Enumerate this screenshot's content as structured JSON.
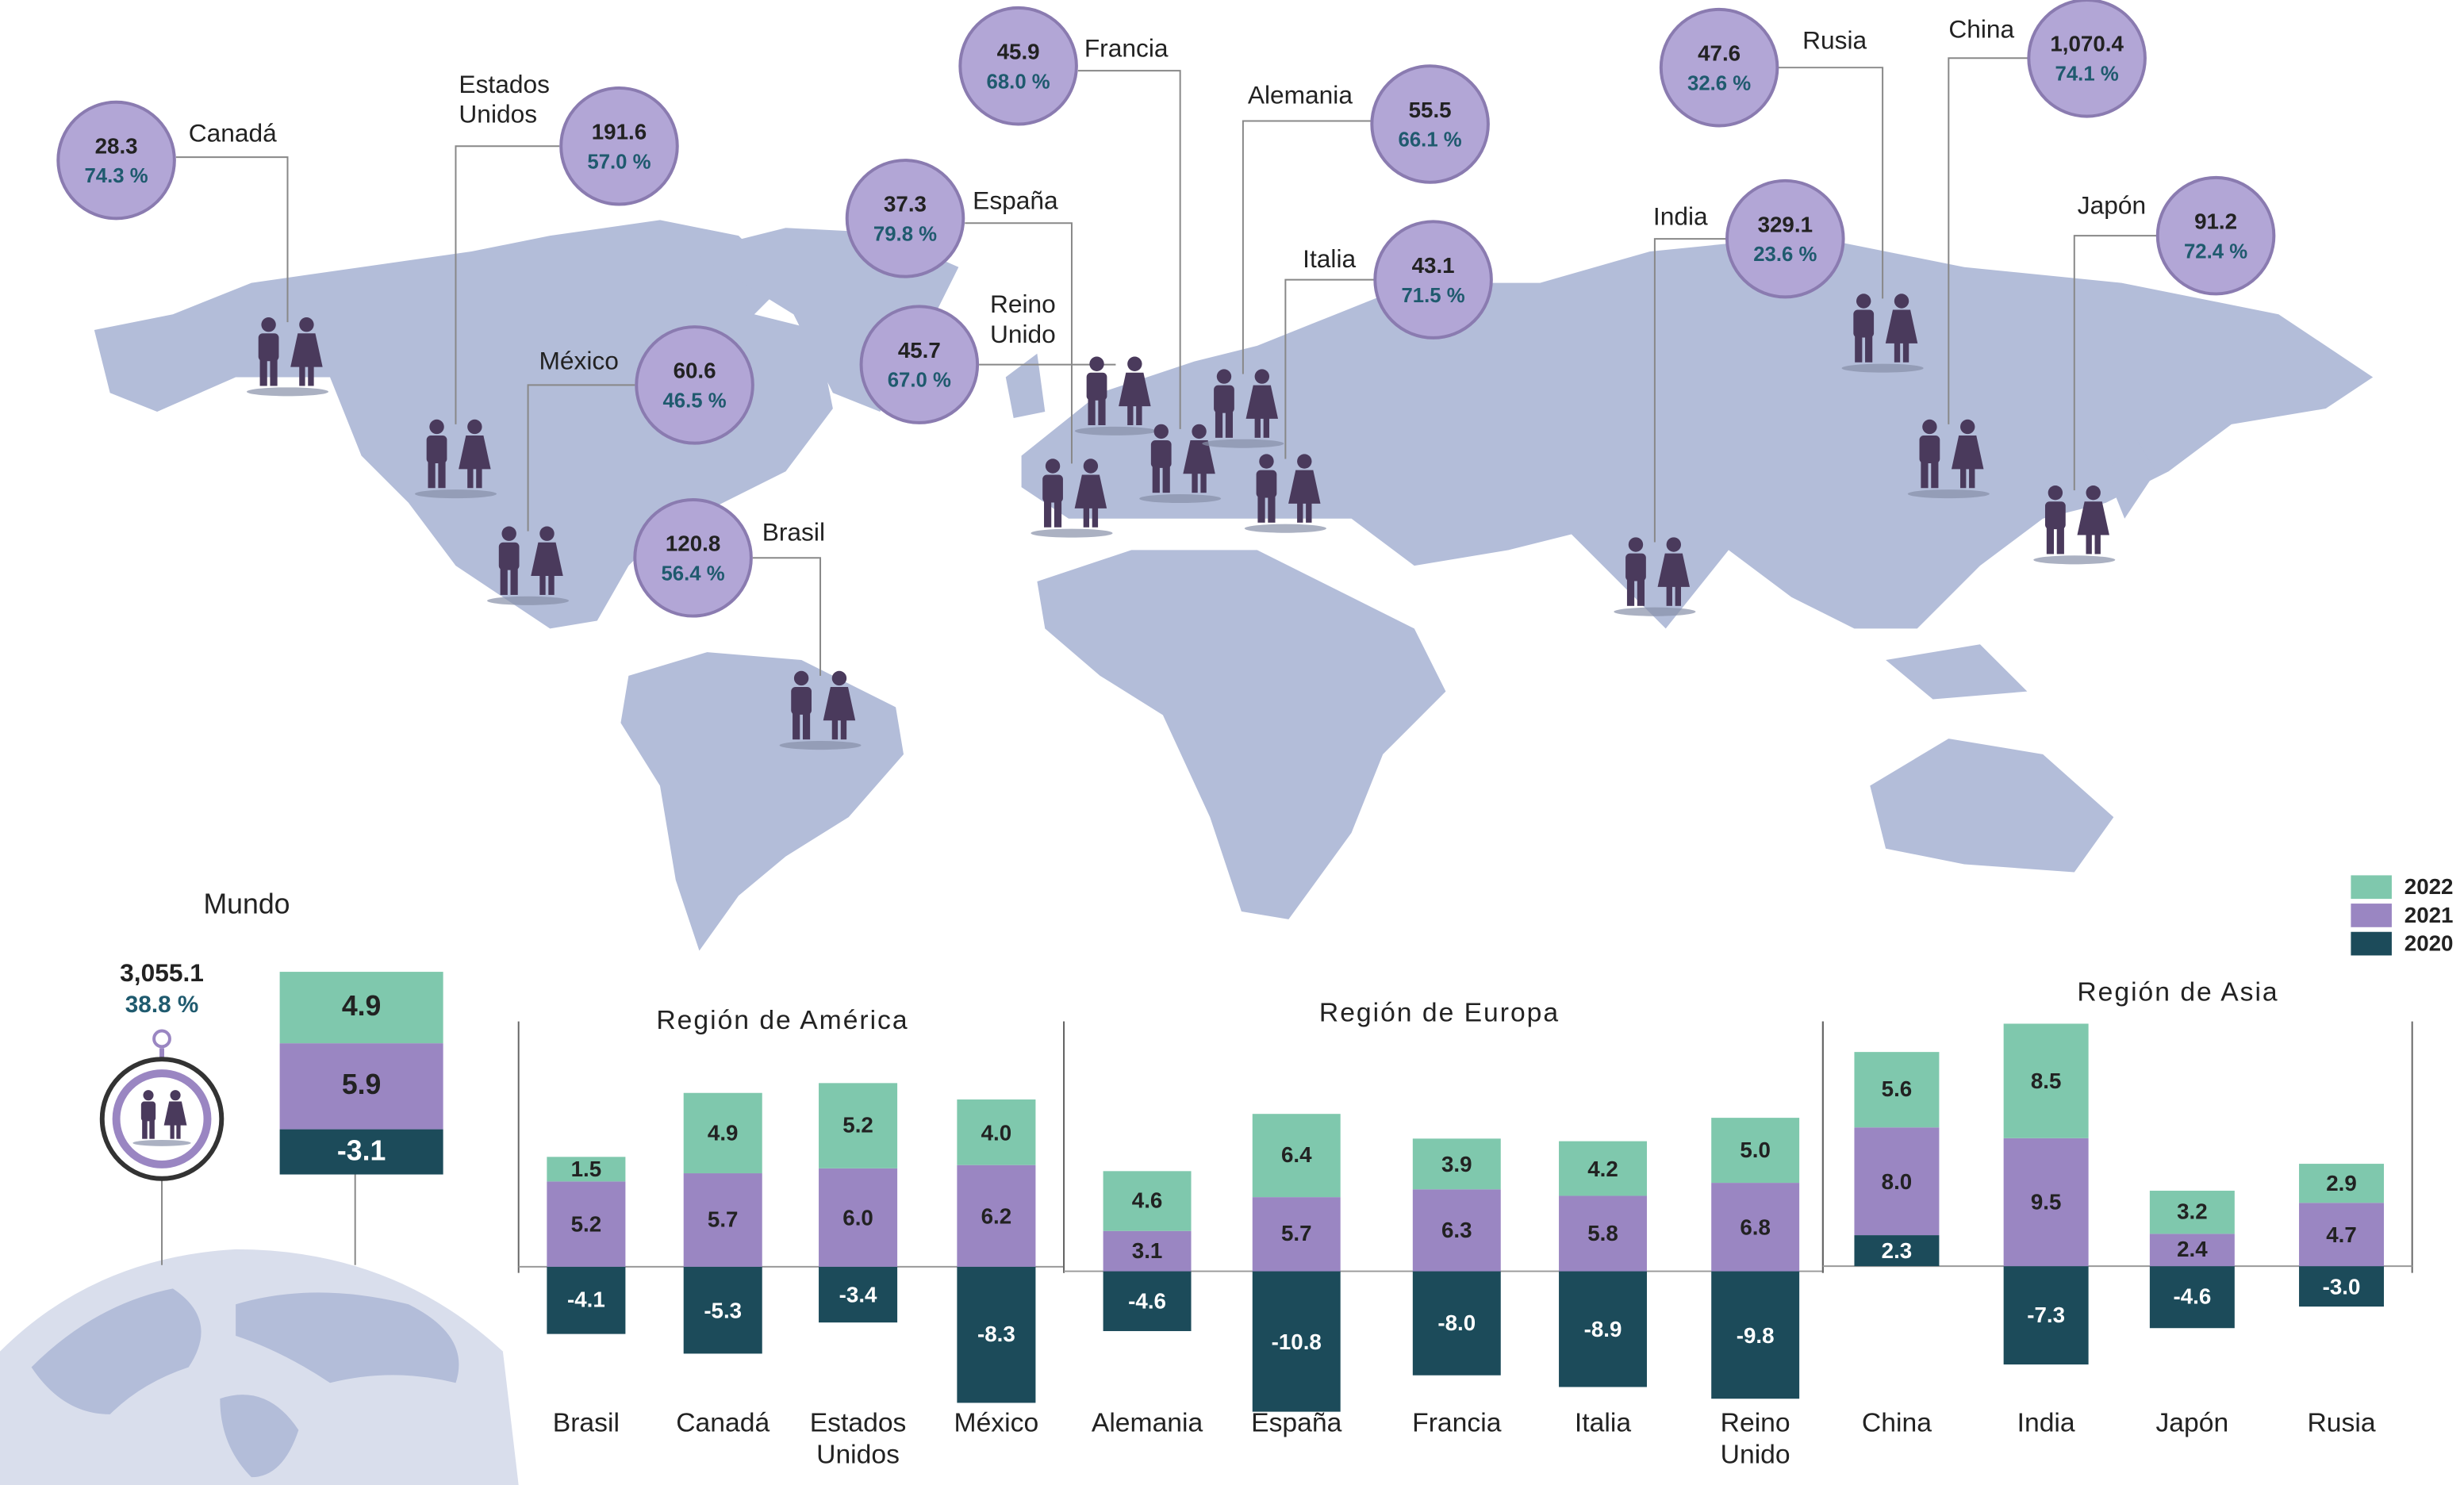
{
  "chart_data": [
    {
      "type": "bubble-map",
      "categories": [
        "Canadá",
        "Estados Unidos",
        "México",
        "Brasil",
        "España",
        "Reino Unido",
        "Francia",
        "Alemania",
        "Italia",
        "India",
        "Rusia",
        "China",
        "Japón"
      ],
      "values": [
        28.3,
        191.6,
        60.6,
        120.8,
        37.3,
        45.7,
        45.9,
        55.5,
        43.1,
        329.1,
        47.6,
        1070.4,
        91.2
      ],
      "value_labels": [
        "28.3",
        "191.6",
        "60.6",
        "120.8",
        "37.3",
        "45.7",
        "45.9",
        "55.5",
        "43.1",
        "329.1",
        "47.6",
        "1,070.4",
        "91.2"
      ],
      "shares": [
        74.3,
        57.0,
        46.5,
        56.4,
        79.8,
        67.0,
        68.0,
        66.1,
        71.5,
        23.6,
        32.6,
        74.1,
        72.4
      ],
      "share_labels": [
        "74.3 %",
        "57.0 %",
        "46.5 %",
        "56.4 %",
        "79.8 %",
        "67.0 %",
        "68.0 %",
        "66.1 %",
        "71.5 %",
        "23.6 %",
        "32.6 %",
        "74.1 %",
        "72.4 %"
      ]
    },
    {
      "type": "stacked-bar",
      "title": "Mundo",
      "total": 3055.1,
      "total_label": "3,055.1",
      "share": 38.8,
      "share_label": "38.8 %",
      "categories": [
        null
      ],
      "series": [
        {
          "name": "2022",
          "color": "#7fc8ad",
          "values": [
            4.9
          ],
          "value_labels": [
            "4.9"
          ]
        },
        {
          "name": "2021",
          "color": "#9a86c2",
          "values": [
            5.9
          ],
          "value_labels": [
            "5.9"
          ]
        },
        {
          "name": "2020",
          "color": "#1c4b5a",
          "values": [
            -3.1
          ],
          "value_labels": [
            "-3.1"
          ]
        }
      ],
      "ylim": [
        -5,
        13
      ]
    },
    {
      "type": "stacked-bar",
      "title": "Región de América",
      "categories": [
        "Brasil",
        "Canadá",
        "Estados Unidos",
        "México"
      ],
      "series": [
        {
          "color": "#7fc8ad",
          "values": [
            1.5,
            4.9,
            5.2,
            4.0
          ],
          "value_labels": [
            "1.5",
            "4.9",
            "5.2",
            "4.0"
          ]
        },
        {
          "color": "#9a86c2",
          "values": [
            5.2,
            5.7,
            6.0,
            6.2
          ],
          "value_labels": [
            "5.2",
            "5.7",
            "6.0",
            "6.2"
          ]
        },
        {
          "color": "#1c4b5a",
          "values": [
            -4.1,
            -5.3,
            -3.4,
            -8.3
          ],
          "value_labels": [
            "-4.1",
            "-5.3",
            "-3.4",
            "-8.3"
          ]
        }
      ],
      "ylim": [
        -9,
        14
      ]
    },
    {
      "type": "stacked-bar",
      "title": "Región de Europa",
      "categories": [
        "Alemania",
        "España",
        "Francia",
        "Italia",
        "Reino Unido"
      ],
      "series": [
        {
          "color": "#7fc8ad",
          "values": [
            4.6,
            6.4,
            3.9,
            4.2,
            5.0
          ],
          "value_labels": [
            "4.6",
            "6.4",
            "3.9",
            "4.2",
            "5.0"
          ]
        },
        {
          "color": "#9a86c2",
          "values": [
            3.1,
            5.7,
            6.3,
            5.8,
            6.8
          ],
          "value_labels": [
            "3.1",
            "5.7",
            "6.3",
            "5.8",
            "6.8"
          ]
        },
        {
          "color": "#1c4b5a",
          "values": [
            -4.6,
            -10.8,
            -8.0,
            -8.9,
            -9.8
          ],
          "value_labels": [
            "-4.6",
            "-10.8",
            "-8.0",
            "-8.9",
            "-9.8"
          ]
        }
      ],
      "ylim": [
        -11,
        18
      ]
    },
    {
      "type": "stacked-bar",
      "title": "Región de Asia",
      "categories": [
        "China",
        "India",
        "Japón",
        "Rusia"
      ],
      "series": [
        {
          "color": "#7fc8ad",
          "values": [
            5.6,
            8.5,
            3.2,
            2.9
          ],
          "value_labels": [
            "5.6",
            "8.5",
            "3.2",
            "2.9"
          ]
        },
        {
          "color": "#9a86c2",
          "values": [
            8.0,
            9.5,
            2.4,
            4.7
          ],
          "value_labels": [
            "8.0",
            "9.5",
            "2.4",
            "4.7"
          ]
        },
        {
          "color": "#1c4b5a",
          "values": [
            2.3,
            -7.3,
            -4.6,
            -3.0
          ],
          "value_labels": [
            "2.3",
            "-7.3",
            "-4.6",
            "-3.0"
          ]
        }
      ],
      "ylim": [
        -11,
        17
      ]
    }
  ]
}
